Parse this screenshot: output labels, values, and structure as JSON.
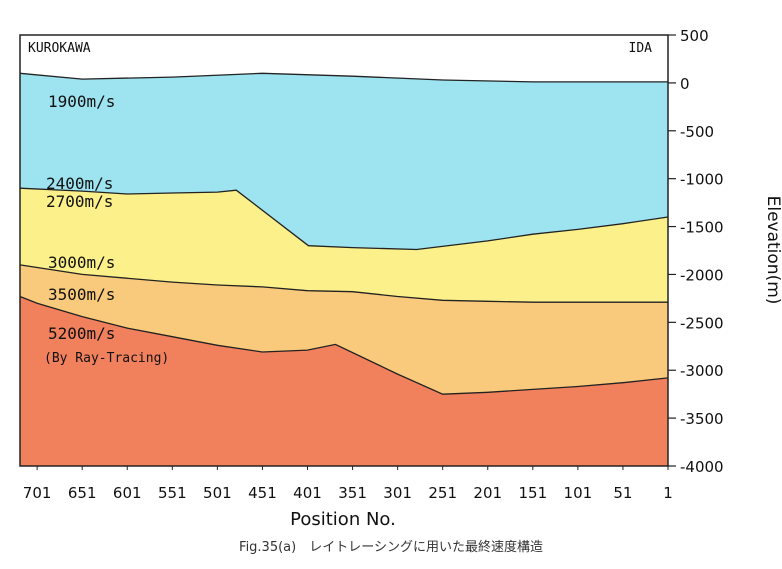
{
  "chart_data": {
    "type": "area",
    "title": "",
    "xlabel": "Position No.",
    "ylabel": "Elevation(m)",
    "xlim": [
      720,
      1
    ],
    "ylim": [
      -4000,
      500
    ],
    "x_ticks": [
      701,
      651,
      601,
      551,
      501,
      451,
      401,
      351,
      301,
      251,
      201,
      151,
      101,
      51,
      1
    ],
    "x_tick_labels": [
      "701",
      "651",
      "601",
      "551",
      "501",
      "451",
      "401",
      "351",
      "301",
      "251",
      "201",
      "151",
      "101",
      "51",
      "1"
    ],
    "y_ticks": [
      500,
      0,
      -500,
      -1000,
      -1500,
      -2000,
      -2500,
      -3000,
      -3500,
      -4000
    ],
    "y_tick_labels": [
      "500",
      "0",
      "-500",
      "-1000",
      "-1500",
      "-2000",
      "-2500",
      "-3000",
      "-3500",
      "-4000"
    ],
    "end_labels": {
      "left": "KUROKAWA",
      "right": "IDA"
    },
    "series": [
      {
        "name": "1900m/s",
        "color": "#9ee3f0",
        "boundary_x": [
          720,
          651,
          551,
          451,
          351,
          251,
          151,
          51,
          1
        ],
        "boundary_y": [
          100,
          40,
          60,
          100,
          70,
          30,
          10,
          10,
          10
        ]
      },
      {
        "name": "2400m/s",
        "color": "#fbf089",
        "boundary_x": [
          720,
          651,
          601,
          551,
          501,
          480,
          400,
          351,
          280,
          201,
          151,
          101,
          51,
          1
        ],
        "boundary_y": [
          -1100,
          -1130,
          -1160,
          -1150,
          -1140,
          -1120,
          -1700,
          -1720,
          -1740,
          -1650,
          -1580,
          -1530,
          -1470,
          -1400
        ]
      },
      {
        "name": "3000m/s",
        "color": "#f9ca7b",
        "boundary_x": [
          720,
          651,
          551,
          501,
          451,
          401,
          351,
          301,
          251,
          201,
          151,
          101,
          51,
          1
        ],
        "boundary_y": [
          -1900,
          -2000,
          -2080,
          -2110,
          -2130,
          -2170,
          -2180,
          -2230,
          -2270,
          -2280,
          -2290,
          -2290,
          -2290,
          -2290
        ]
      },
      {
        "name": "5200m/s",
        "color": "#f1805c",
        "boundary_x": [
          720,
          701,
          651,
          601,
          551,
          501,
          451,
          401,
          370,
          301,
          251,
          201,
          151,
          101,
          51,
          1
        ],
        "boundary_y": [
          -2230,
          -2300,
          -2440,
          -2560,
          -2650,
          -2740,
          -2810,
          -2790,
          -2730,
          -3040,
          -3250,
          -3230,
          -3200,
          -3170,
          -3130,
          -3080
        ]
      }
    ],
    "annotations": [
      "1900m/s",
      "2400m/s",
      "2700m/s",
      "3000m/s",
      "3500m/s",
      "5200m/s",
      "(By Ray-Tracing)"
    ],
    "grid": false,
    "legend": "none"
  },
  "caption": "Fig.35(a)　レイトレーシングに用いた最終速度構造"
}
